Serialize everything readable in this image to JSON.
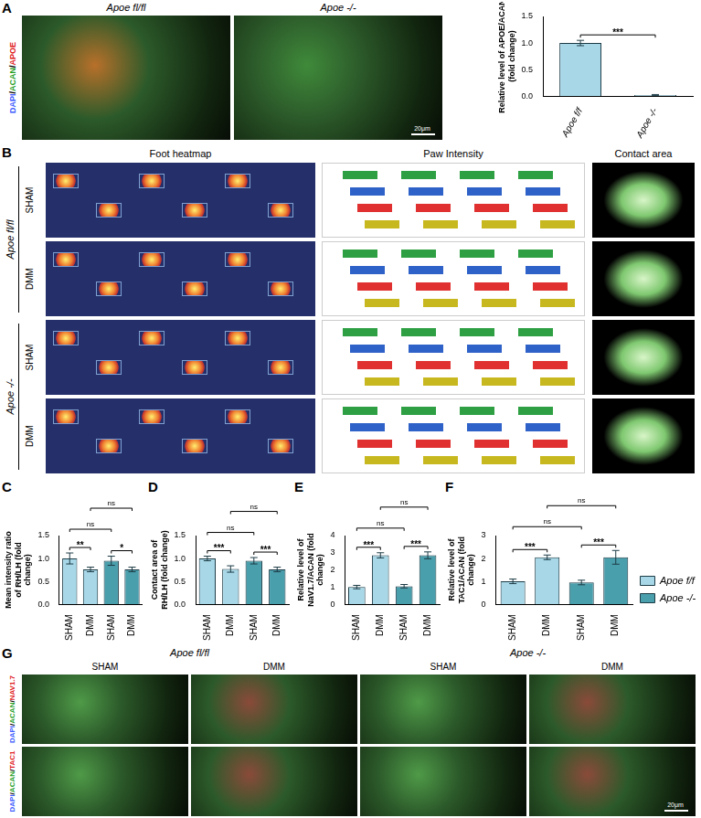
{
  "panel_letters": [
    "A",
    "B",
    "C",
    "D",
    "E",
    "F",
    "G"
  ],
  "images": {
    "A": {
      "columns": [
        "Apoe fl/fl",
        "Apoe -/-"
      ],
      "stain": "DAPI/ACAN/APOE",
      "scale_bar": "20μm"
    },
    "B": {
      "columns": [
        "Foot heatmap",
        "Paw Intensity",
        "Contact area"
      ],
      "groups": [
        "Apoe fl/fl",
        "Apoe -/-"
      ],
      "rows": [
        "SHAM",
        "DMM"
      ]
    },
    "G": {
      "groups": [
        "Apoe fl/fl",
        "Apoe -/-"
      ],
      "columns": [
        "SHAM",
        "DMM"
      ],
      "stains": [
        "DAPI/ACAN/NAV1.7",
        "DAPI/ACAN/TAC1"
      ],
      "scale_bar": "20μm"
    }
  },
  "chart_data": [
    {
      "type": "bar",
      "y_label": "Relative level of APOE/ACAN (fold change)",
      "categories": [
        "Apoe f/f",
        "Apoe -/-"
      ],
      "values": [
        1.0,
        0.02
      ],
      "errors": [
        0.05,
        0.01
      ],
      "color": "#a8d8e8",
      "ylim": [
        0,
        1.5
      ],
      "yticks": [
        {
          "value": 0,
          "label": "0.0"
        },
        {
          "value": 0.5,
          "label": "0.5"
        },
        {
          "value": 1,
          "label": "1.0"
        },
        {
          "value": 1.5,
          "label": "1.5"
        }
      ],
      "grid": false,
      "significance": [
        {
          "from": 0,
          "to": 1,
          "text": "***"
        }
      ]
    },
    {
      "type": "bar",
      "y_label": "Mean intensity ratio of RH/LH (fold change)",
      "categories": [
        "SHAM",
        "DMM",
        "SHAM",
        "DMM"
      ],
      "series": [
        {
          "name": "Apoe f/f",
          "color": "#a8d8e8",
          "values": [
            1.0,
            0.76,
            null,
            null
          ],
          "errors": [
            0.12,
            0.05,
            null,
            null
          ]
        },
        {
          "name": "Apoe -/-",
          "color": "#4a9fad",
          "values": [
            null,
            null,
            0.95,
            0.76
          ],
          "errors": [
            null,
            null,
            0.1,
            0.05
          ]
        }
      ],
      "ylim": [
        0,
        1.5
      ],
      "yticks": [
        {
          "value": 0,
          "label": "0.0"
        },
        {
          "value": 0.5,
          "label": "0.5"
        },
        {
          "value": 1,
          "label": "1.0"
        },
        {
          "value": 1.5,
          "label": "1.5"
        }
      ],
      "grid": false,
      "significance": [
        {
          "from": 0,
          "to": 1,
          "text": "**"
        },
        {
          "from": 2,
          "to": 3,
          "text": "*"
        },
        {
          "from": 0,
          "to": 2,
          "text": "ns"
        },
        {
          "from": 1,
          "to": 3,
          "text": "ns"
        }
      ]
    },
    {
      "type": "bar",
      "y_label": "Contact area of RH/LH (fold change)",
      "categories": [
        "SHAM",
        "DMM",
        "SHAM",
        "DMM"
      ],
      "series": [
        {
          "name": "Apoe f/f",
          "color": "#a8d8e8",
          "values": [
            1.0,
            0.77,
            null,
            null
          ],
          "errors": [
            0.05,
            0.07,
            null,
            null
          ]
        },
        {
          "name": "Apoe -/-",
          "color": "#4a9fad",
          "values": [
            null,
            null,
            0.95,
            0.76
          ],
          "errors": [
            null,
            null,
            0.07,
            0.05
          ]
        }
      ],
      "ylim": [
        0,
        1.5
      ],
      "yticks": [
        {
          "value": 0,
          "label": "0.0"
        },
        {
          "value": 0.5,
          "label": "0.5"
        },
        {
          "value": 1,
          "label": "1.0"
        },
        {
          "value": 1.5,
          "label": "1.5"
        }
      ],
      "grid": false,
      "significance": [
        {
          "from": 0,
          "to": 1,
          "text": "***"
        },
        {
          "from": 2,
          "to": 3,
          "text": "***"
        },
        {
          "from": 0,
          "to": 2,
          "text": "ns"
        },
        {
          "from": 1,
          "to": 3,
          "text": "ns"
        }
      ]
    },
    {
      "type": "bar",
      "y_label": "Relative level of NaV1.7/ACAN (fold change)",
      "categories": [
        "SHAM",
        "DMM",
        "SHAM",
        "DMM"
      ],
      "series": [
        {
          "name": "Apoe f/f",
          "color": "#a8d8e8",
          "values": [
            1.0,
            2.85,
            null,
            null
          ],
          "errors": [
            0.1,
            0.15,
            null,
            null
          ]
        },
        {
          "name": "Apoe -/-",
          "color": "#4a9fad",
          "values": [
            null,
            null,
            1.05,
            2.85
          ],
          "errors": [
            null,
            null,
            0.1,
            0.2
          ]
        }
      ],
      "ylim": [
        0,
        4
      ],
      "yticks": [
        0,
        1,
        2,
        3,
        4
      ],
      "grid": false,
      "significance": [
        {
          "from": 0,
          "to": 1,
          "text": "***"
        },
        {
          "from": 2,
          "to": 3,
          "text": "***"
        },
        {
          "from": 0,
          "to": 2,
          "text": "ns"
        },
        {
          "from": 1,
          "to": 3,
          "text": "ns"
        }
      ]
    },
    {
      "type": "bar",
      "y_label": "Relative level of TAC1/ACAN (fold change)",
      "categories": [
        "SHAM",
        "DMM",
        "SHAM",
        "DMM"
      ],
      "series": [
        {
          "name": "Apoe f/f",
          "color": "#a8d8e8",
          "values": [
            1.0,
            2.05,
            null,
            null
          ],
          "errors": [
            0.1,
            0.1,
            null,
            null
          ]
        },
        {
          "name": "Apoe -/-",
          "color": "#4a9fad",
          "values": [
            null,
            null,
            0.95,
            2.05
          ],
          "errors": [
            null,
            null,
            0.1,
            0.3
          ]
        }
      ],
      "ylim": [
        0,
        3
      ],
      "yticks": [
        0,
        1,
        2,
        3
      ],
      "grid": false,
      "legend": "right",
      "significance": [
        {
          "from": 0,
          "to": 1,
          "text": "***"
        },
        {
          "from": 2,
          "to": 3,
          "text": "***"
        },
        {
          "from": 0,
          "to": 2,
          "text": "ns"
        },
        {
          "from": 1,
          "to": 3,
          "text": "ns"
        }
      ]
    }
  ]
}
